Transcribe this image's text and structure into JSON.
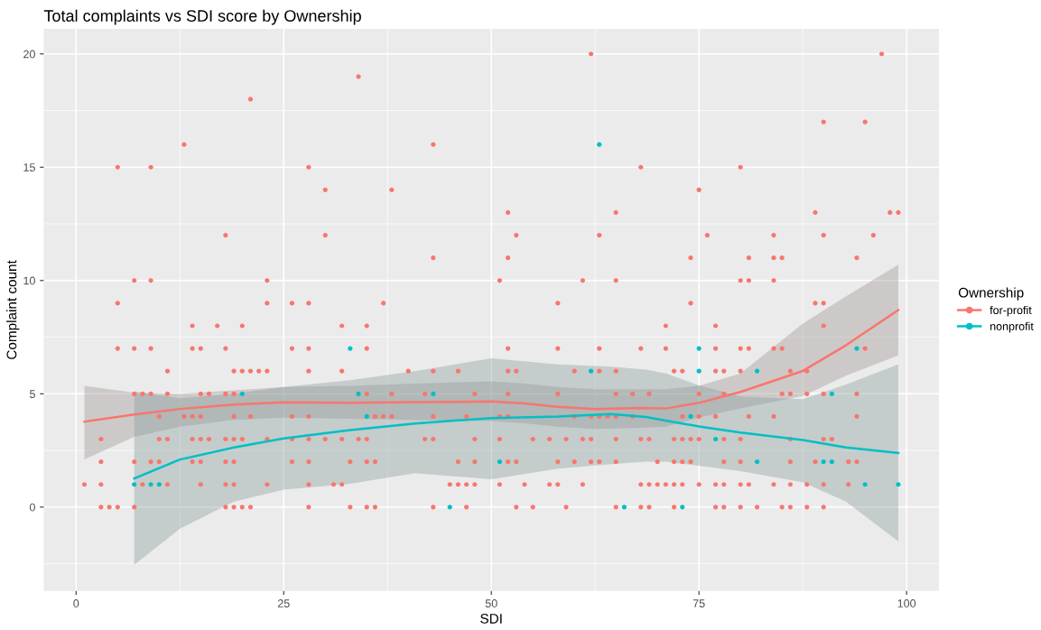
{
  "chart_data": {
    "type": "scatter",
    "title": "Total complaints vs SDI score by Ownership",
    "xlabel": "SDI",
    "ylabel": "Complaint count",
    "legend_title": "Ownership",
    "legend": "right",
    "grid": true,
    "marker": "circle",
    "xlim": [
      -3.9,
      103.9
    ],
    "ylim": [
      -3.7,
      21.1
    ],
    "xticks": [
      0,
      25,
      50,
      75,
      100
    ],
    "yticks": [
      0,
      5,
      10,
      15,
      20
    ],
    "series": [
      {
        "name": "for-profit",
        "color": "#f8766d",
        "x": [
          62,
          97,
          34,
          21,
          90,
          95,
          13,
          43,
          5,
          9,
          28,
          68,
          80,
          30,
          38,
          75,
          52,
          65,
          89,
          98,
          99,
          18,
          30,
          53,
          63,
          76,
          84,
          90,
          96,
          43,
          52,
          74,
          81,
          84,
          85,
          94,
          7,
          9,
          23,
          51,
          61,
          65,
          80,
          81,
          84,
          5,
          23,
          26,
          28,
          37,
          58,
          74,
          89,
          90,
          14,
          17,
          20,
          32,
          35,
          71,
          77,
          90,
          5,
          7,
          9,
          14,
          15,
          18,
          26,
          28,
          35,
          52,
          58,
          63,
          68,
          71,
          77,
          80,
          81,
          84,
          85,
          95,
          11,
          19,
          20,
          21,
          22,
          23,
          28,
          32,
          40,
          43,
          46,
          52,
          53,
          60,
          63,
          65,
          72,
          73,
          77,
          78,
          80,
          86,
          88,
          7,
          8,
          9,
          11,
          15,
          16,
          18,
          19,
          35,
          38,
          42,
          48,
          52,
          58,
          65,
          67,
          69,
          75,
          78,
          85,
          86,
          88,
          90,
          94,
          10,
          13,
          14,
          15,
          19,
          21,
          26,
          28,
          36,
          37,
          38,
          43,
          47,
          51,
          52,
          60,
          62,
          63,
          64,
          65,
          67,
          73,
          75,
          77,
          81,
          84,
          94,
          3,
          10,
          11,
          14,
          15,
          16,
          18,
          19,
          20,
          23,
          26,
          28,
          30,
          32,
          34,
          35,
          42,
          43,
          48,
          51,
          55,
          57,
          59,
          61,
          62,
          65,
          68,
          69,
          72,
          73,
          74,
          75,
          78,
          80,
          86,
          90,
          91,
          3,
          7,
          9,
          10,
          14,
          15,
          18,
          19,
          26,
          28,
          33,
          35,
          36,
          46,
          48,
          52,
          53,
          58,
          60,
          62,
          63,
          65,
          70,
          72,
          73,
          74,
          78,
          80,
          86,
          89,
          93,
          94,
          1,
          3,
          8,
          11,
          15,
          18,
          19,
          23,
          28,
          31,
          32,
          45,
          46,
          47,
          48,
          51,
          54,
          57,
          58,
          61,
          68,
          69,
          70,
          71,
          72,
          73,
          75,
          77,
          78,
          80,
          81,
          84,
          86,
          88,
          90,
          93,
          3,
          4,
          5,
          7,
          18,
          19,
          20,
          21,
          28,
          33,
          35,
          36,
          43,
          47,
          53,
          55,
          59,
          65,
          68,
          69,
          72,
          77,
          78,
          80,
          82,
          85,
          86,
          88,
          90
        ],
        "values": [
          20,
          20,
          19,
          18,
          17,
          17,
          16,
          16,
          15,
          15,
          15,
          15,
          15,
          14,
          14,
          14,
          13,
          13,
          13,
          13,
          13,
          12,
          12,
          12,
          12,
          12,
          12,
          12,
          12,
          11,
          11,
          11,
          11,
          11,
          11,
          11,
          10,
          10,
          10,
          10,
          10,
          10,
          10,
          10,
          10,
          9,
          9,
          9,
          9,
          9,
          9,
          9,
          9,
          9,
          8,
          8,
          8,
          8,
          8,
          8,
          8,
          8,
          7,
          7,
          7,
          7,
          7,
          7,
          7,
          7,
          7,
          7,
          7,
          7,
          7,
          7,
          7,
          7,
          7,
          7,
          7,
          7,
          6,
          6,
          6,
          6,
          6,
          6,
          6,
          6,
          6,
          6,
          6,
          6,
          6,
          6,
          6,
          6,
          6,
          6,
          6,
          6,
          6,
          6,
          6,
          5,
          5,
          5,
          5,
          5,
          5,
          5,
          5,
          5,
          5,
          5,
          5,
          5,
          5,
          5,
          5,
          5,
          5,
          5,
          5,
          5,
          5,
          5,
          5,
          4,
          4,
          4,
          4,
          4,
          4,
          4,
          4,
          4,
          4,
          4,
          4,
          4,
          4,
          4,
          4,
          4,
          4,
          4,
          4,
          4,
          4,
          4,
          4,
          4,
          4,
          4,
          3,
          3,
          3,
          3,
          3,
          3,
          3,
          3,
          3,
          3,
          3,
          3,
          3,
          3,
          3,
          3,
          3,
          3,
          3,
          3,
          3,
          3,
          3,
          3,
          3,
          3,
          3,
          3,
          3,
          3,
          3,
          3,
          3,
          3,
          3,
          3,
          3,
          2,
          2,
          2,
          2,
          2,
          2,
          2,
          2,
          2,
          2,
          2,
          2,
          2,
          2,
          2,
          2,
          2,
          2,
          2,
          2,
          2,
          2,
          2,
          2,
          2,
          2,
          2,
          2,
          2,
          2,
          2,
          2,
          1,
          1,
          1,
          1,
          1,
          1,
          1,
          1,
          1,
          1,
          1,
          1,
          1,
          1,
          1,
          1,
          1,
          1,
          1,
          1,
          1,
          1,
          1,
          1,
          1,
          1,
          1,
          1,
          1,
          1,
          1,
          1,
          1,
          1,
          1,
          1,
          0,
          0,
          0,
          0,
          0,
          0,
          0,
          0,
          0,
          0,
          0,
          0,
          0,
          0,
          0,
          0,
          0,
          0,
          0,
          0,
          0,
          0,
          0,
          0,
          0,
          0,
          0,
          0,
          0
        ]
      },
      {
        "name": "nonprofit",
        "color": "#00bfc4",
        "x": [
          63,
          33,
          75,
          94,
          62,
          75,
          82,
          20,
          34,
          43,
          91,
          35,
          74,
          77,
          51,
          82,
          90,
          91,
          7,
          9,
          10,
          95,
          99,
          45,
          66,
          73
        ],
        "values": [
          16,
          7,
          7,
          7,
          6,
          6,
          6,
          5,
          5,
          5,
          5,
          4,
          4,
          3,
          2,
          2,
          2,
          2,
          1,
          1,
          1,
          1,
          1,
          0,
          0,
          0
        ]
      },
      {
        "color": "#f8766d",
        "type": "line",
        "marker": "none",
        "x": [
          1,
          7,
          12.5,
          19,
          25,
          33,
          41,
          50,
          54,
          58,
          62.5,
          68,
          71,
          75,
          80,
          87.5,
          92.7,
          99
        ],
        "values": [
          3.77,
          4.09,
          4.33,
          4.52,
          4.62,
          4.6,
          4.63,
          4.66,
          4.57,
          4.42,
          4.33,
          4.37,
          4.35,
          4.6,
          5.08,
          6.01,
          7.14,
          8.7
        ],
        "lower": [
          2.1,
          3.1,
          3.55,
          3.85,
          3.95,
          3.9,
          3.85,
          3.8,
          3.7,
          3.55,
          3.45,
          3.5,
          3.55,
          3.95,
          4.35,
          4.9,
          5.8,
          6.7
        ],
        "upper": [
          5.35,
          5.05,
          5.0,
          5.15,
          5.3,
          5.35,
          5.45,
          5.55,
          5.45,
          5.3,
          5.2,
          5.2,
          5.2,
          5.35,
          5.9,
          8.1,
          9.3,
          10.7
        ]
      },
      {
        "color": "#00bfc4",
        "type": "line",
        "marker": "none",
        "x": [
          7,
          12.5,
          19,
          25,
          33,
          40.8,
          50,
          58,
          64.4,
          68.6,
          71,
          75,
          80,
          87.5,
          92.7,
          99
        ],
        "values": [
          1.26,
          2.1,
          2.63,
          3.03,
          3.4,
          3.69,
          3.93,
          4.0,
          4.11,
          3.98,
          3.82,
          3.56,
          3.29,
          2.96,
          2.63,
          2.39
        ],
        "lower": [
          -2.55,
          -0.95,
          0.24,
          0.77,
          1.03,
          1.5,
          1.23,
          1.7,
          1.9,
          2.0,
          2.0,
          1.83,
          1.59,
          1.1,
          0.24,
          -1.51
        ],
        "upper": [
          5.1,
          4.8,
          5.0,
          5.3,
          5.6,
          6.0,
          6.57,
          6.3,
          6.2,
          6.07,
          5.9,
          5.37,
          4.88,
          4.76,
          5.41,
          6.3
        ]
      }
    ]
  }
}
